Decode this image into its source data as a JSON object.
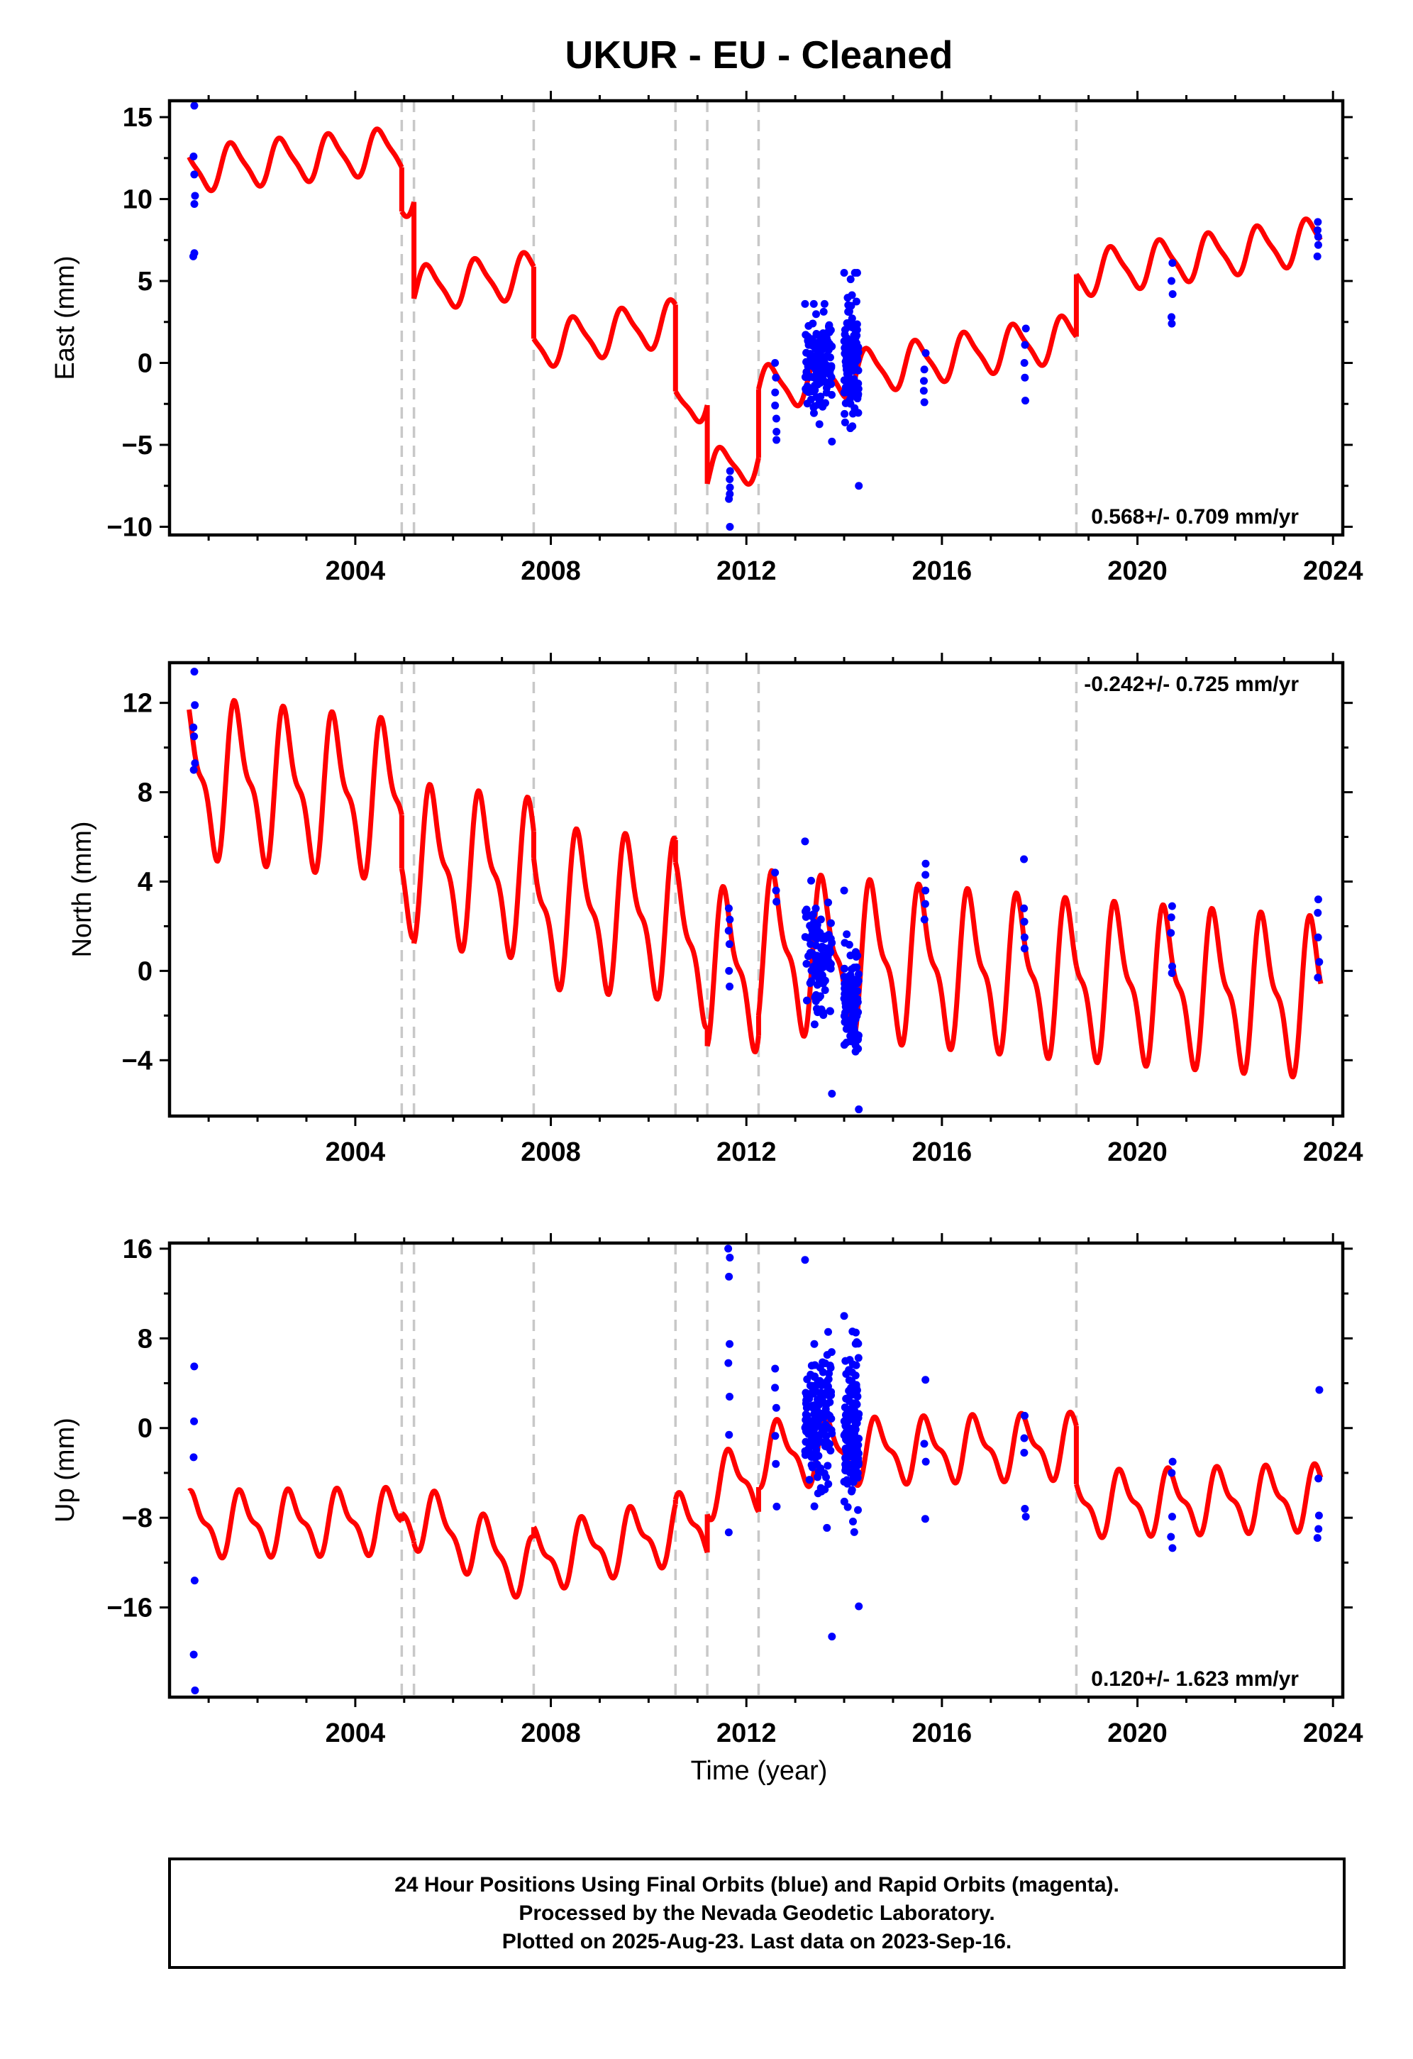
{
  "title": "UKUR  - EU - Cleaned",
  "xlabel": "Time (year)",
  "colors": {
    "final": "#0000ff",
    "model": "#ff0000",
    "event": "#c8c8c8",
    "frame": "#000000"
  },
  "footer": {
    "line1": "24 Hour Positions Using Final Orbits (blue) and Rapid Orbits (magenta).",
    "line2": "Processed by the Nevada Geodetic Laboratory.",
    "line3": "Plotted on 2025-Aug-23. Last data on 2023-Sep-16."
  },
  "chart_data": [
    {
      "type": "scatter",
      "component": "East",
      "ylabel": "East (mm)",
      "rate_text": "0.568+/- 0.709 mm/yr",
      "rate_position": "bottom-right",
      "xlim": [
        2000.2,
        2024.2
      ],
      "ylim": [
        -10.5,
        16
      ],
      "xticks": [
        2004,
        2008,
        2012,
        2016,
        2020,
        2024
      ],
      "yticks": [
        -10,
        -5,
        0,
        5,
        10,
        15
      ],
      "ytick_labels": [
        "−10",
        "−5",
        "0",
        "5",
        "10",
        "15"
      ],
      "events": [
        2004.95,
        2005.2,
        2007.65,
        2010.55,
        2011.2,
        2012.25,
        2018.75
      ],
      "model": {
        "amplitude": 1.3,
        "phase": 0.25,
        "harmonic2": 0.3,
        "segments": [
          {
            "t0": 2000.6,
            "t1": 2004.95,
            "y0": 11.8,
            "y1": 13.0
          },
          {
            "t0": 2004.95,
            "t1": 2005.2,
            "y0": 10.3,
            "y1": 10.4
          },
          {
            "t0": 2005.2,
            "t1": 2007.65,
            "y0": 4.5,
            "y1": 5.4
          },
          {
            "t0": 2007.65,
            "t1": 2010.55,
            "y0": 1.0,
            "y1": 2.5
          },
          {
            "t0": 2010.55,
            "t1": 2011.2,
            "y0": -2.8,
            "y1": -2.0
          },
          {
            "t0": 2011.2,
            "t1": 2012.25,
            "y0": -6.8,
            "y1": -5.8
          },
          {
            "t0": 2012.25,
            "t1": 2018.75,
            "y0": -1.6,
            "y1": 1.6
          },
          {
            "t0": 2018.75,
            "t1": 2023.75,
            "y0": 5.4,
            "y1": 7.5
          }
        ]
      },
      "clusters": [
        {
          "t": 2000.7,
          "ys": [
            15.7,
            12.6,
            11.5,
            10.2,
            9.7,
            6.7,
            6.5
          ]
        },
        {
          "t": 2011.65,
          "ys": [
            -6.6,
            -7.1,
            -7.6,
            -8.0,
            -8.3,
            -10.0
          ]
        },
        {
          "t": 2012.6,
          "ys": [
            0.0,
            -0.9,
            -1.8,
            -2.6,
            -3.4,
            -4.2,
            -4.7
          ]
        },
        {
          "t": 2013.2,
          "t1": 2013.75,
          "n": 140,
          "mean": 0.0,
          "spread": 2.8,
          "min": -4.8,
          "max": 3.6
        },
        {
          "t": 2014.0,
          "t1": 2014.3,
          "n": 120,
          "mean": 0.2,
          "spread": 3.5,
          "min": -7.5,
          "max": 5.5
        },
        {
          "t": 2015.65,
          "ys": [
            0.6,
            -0.4,
            -1.1,
            -1.7,
            -2.4
          ]
        },
        {
          "t": 2017.7,
          "ys": [
            2.1,
            1.1,
            0.0,
            -0.9,
            -2.3
          ]
        },
        {
          "t": 2020.7,
          "ys": [
            6.1,
            5.0,
            4.2,
            2.8,
            2.4
          ]
        },
        {
          "t": 2023.7,
          "ys": [
            8.6,
            8.1,
            7.7,
            7.2,
            6.5
          ]
        }
      ]
    },
    {
      "type": "scatter",
      "component": "North",
      "ylabel": "North (mm)",
      "rate_text": "-0.242+/- 0.725 mm/yr",
      "rate_position": "top-right",
      "xlim": [
        2000.2,
        2024.2
      ],
      "ylim": [
        -6.5,
        13.8
      ],
      "xticks": [
        2004,
        2008,
        2012,
        2016,
        2020,
        2024
      ],
      "yticks": [
        -4,
        0,
        4,
        8,
        12
      ],
      "ytick_labels": [
        "−4",
        "0",
        "4",
        "8",
        "12"
      ],
      "events": [
        2004.95,
        2005.2,
        2007.65,
        2010.55,
        2011.2,
        2012.25,
        2018.75
      ],
      "model": {
        "amplitude": 3.0,
        "phase": 0.35,
        "harmonic2": 1.2,
        "segments": [
          {
            "t0": 2000.6,
            "t1": 2004.95,
            "y0": 8.7,
            "y1": 7.6
          },
          {
            "t0": 2004.95,
            "t1": 2005.2,
            "y0": 5.2,
            "y1": 5.1
          },
          {
            "t0": 2005.2,
            "t1": 2007.65,
            "y0": 4.8,
            "y1": 4.1
          },
          {
            "t0": 2007.65,
            "t1": 2010.55,
            "y0": 2.9,
            "y1": 2.3
          },
          {
            "t0": 2010.55,
            "t1": 2011.2,
            "y0": 1.3,
            "y1": 1.1
          },
          {
            "t0": 2011.2,
            "t1": 2012.25,
            "y0": 0.2,
            "y1": 0.0
          },
          {
            "t0": 2012.25,
            "t1": 2018.75,
            "y0": 0.9,
            "y1": -0.4
          },
          {
            "t0": 2018.75,
            "t1": 2023.75,
            "y0": -0.4,
            "y1": -1.2
          }
        ]
      },
      "clusters": [
        {
          "t": 2000.7,
          "ys": [
            13.4,
            11.9,
            10.9,
            10.5,
            9.3,
            9.0
          ]
        },
        {
          "t": 2011.65,
          "ys": [
            2.8,
            2.3,
            1.8,
            1.2,
            0.0,
            -0.7
          ]
        },
        {
          "t": 2012.6,
          "ys": [
            4.4,
            3.6,
            3.1
          ]
        },
        {
          "t": 2013.2,
          "t1": 2013.75,
          "n": 110,
          "mean": 0.5,
          "spread": 2.0,
          "min": -5.5,
          "max": 5.8
        },
        {
          "t": 2014.0,
          "t1": 2014.3,
          "n": 100,
          "mean": -1.3,
          "spread": 2.0,
          "min": -6.2,
          "max": 3.6
        },
        {
          "t": 2015.65,
          "ys": [
            4.8,
            4.3,
            3.6,
            3.0,
            2.3
          ]
        },
        {
          "t": 2017.7,
          "ys": [
            5.0,
            2.8,
            2.2,
            1.5,
            1.0
          ]
        },
        {
          "t": 2020.7,
          "ys": [
            2.9,
            2.4,
            1.7,
            0.2,
            -0.1
          ]
        },
        {
          "t": 2023.7,
          "ys": [
            3.2,
            2.6,
            1.5,
            0.4,
            -0.3
          ]
        }
      ]
    },
    {
      "type": "scatter",
      "component": "Up",
      "ylabel": "Up (mm)",
      "rate_text": "0.120+/- 1.623 mm/yr",
      "rate_position": "bottom-right",
      "xlim": [
        2000.2,
        2024.2
      ],
      "ylim": [
        -24,
        16.5
      ],
      "xticks": [
        2004,
        2008,
        2012,
        2016,
        2020,
        2024
      ],
      "yticks": [
        -16,
        -8,
        0,
        8,
        16
      ],
      "ytick_labels": [
        "−16",
        "−8",
        "0",
        "8",
        "16"
      ],
      "events": [
        2004.95,
        2005.2,
        2007.65,
        2010.55,
        2011.2,
        2012.25,
        2018.75
      ],
      "model": {
        "amplitude": 2.5,
        "phase": 0.45,
        "harmonic2": 1.0,
        "segments": [
          {
            "t0": 2000.6,
            "t1": 2004.95,
            "y0": -8.6,
            "y1": -8.3
          },
          {
            "t0": 2004.95,
            "t1": 2005.2,
            "y0": -7.6,
            "y1": -7.6
          },
          {
            "t0": 2005.2,
            "t1": 2007.65,
            "y0": -7.8,
            "y1": -12.8
          },
          {
            "t0": 2007.65,
            "t1": 2010.55,
            "y0": -11.8,
            "y1": -9.2
          },
          {
            "t0": 2010.55,
            "t1": 2011.2,
            "y0": -8.8,
            "y1": -8.6
          },
          {
            "t0": 2011.2,
            "t1": 2012.25,
            "y0": -5.2,
            "y1": -4.5
          },
          {
            "t0": 2012.25,
            "t1": 2018.75,
            "y0": -2.3,
            "y1": -1.6
          },
          {
            "t0": 2018.75,
            "t1": 2023.75,
            "y0": -6.8,
            "y1": -6.2
          }
        ]
      },
      "clusters": [
        {
          "t": 2000.7,
          "ys": [
            5.5,
            0.6,
            -2.6,
            -13.6,
            -20.2,
            -23.4
          ]
        },
        {
          "t": 2011.65,
          "ys": [
            16.0,
            15.2,
            13.5,
            7.5,
            5.8,
            2.8,
            -0.6,
            -9.3
          ]
        },
        {
          "t": 2012.6,
          "ys": [
            5.3,
            3.6,
            1.8,
            -0.7,
            -3.2,
            -7.0
          ]
        },
        {
          "t": 2013.2,
          "t1": 2013.75,
          "n": 150,
          "mean": 0.5,
          "spread": 6.0,
          "min": -18.6,
          "max": 15.0
        },
        {
          "t": 2014.0,
          "t1": 2014.3,
          "n": 130,
          "mean": -1.0,
          "spread": 6.5,
          "min": -15.9,
          "max": 10.0
        },
        {
          "t": 2015.65,
          "ys": [
            4.3,
            -1.4,
            -3.0,
            -8.1
          ]
        },
        {
          "t": 2017.7,
          "ys": [
            1.1,
            -0.9,
            -2.2,
            -7.2,
            -7.9
          ]
        },
        {
          "t": 2020.7,
          "ys": [
            -3.0,
            -4.0,
            -7.9,
            -9.7,
            -10.7
          ]
        },
        {
          "t": 2023.7,
          "ys": [
            3.4,
            -4.5,
            -7.8,
            -9.0,
            -9.8
          ]
        }
      ]
    }
  ]
}
